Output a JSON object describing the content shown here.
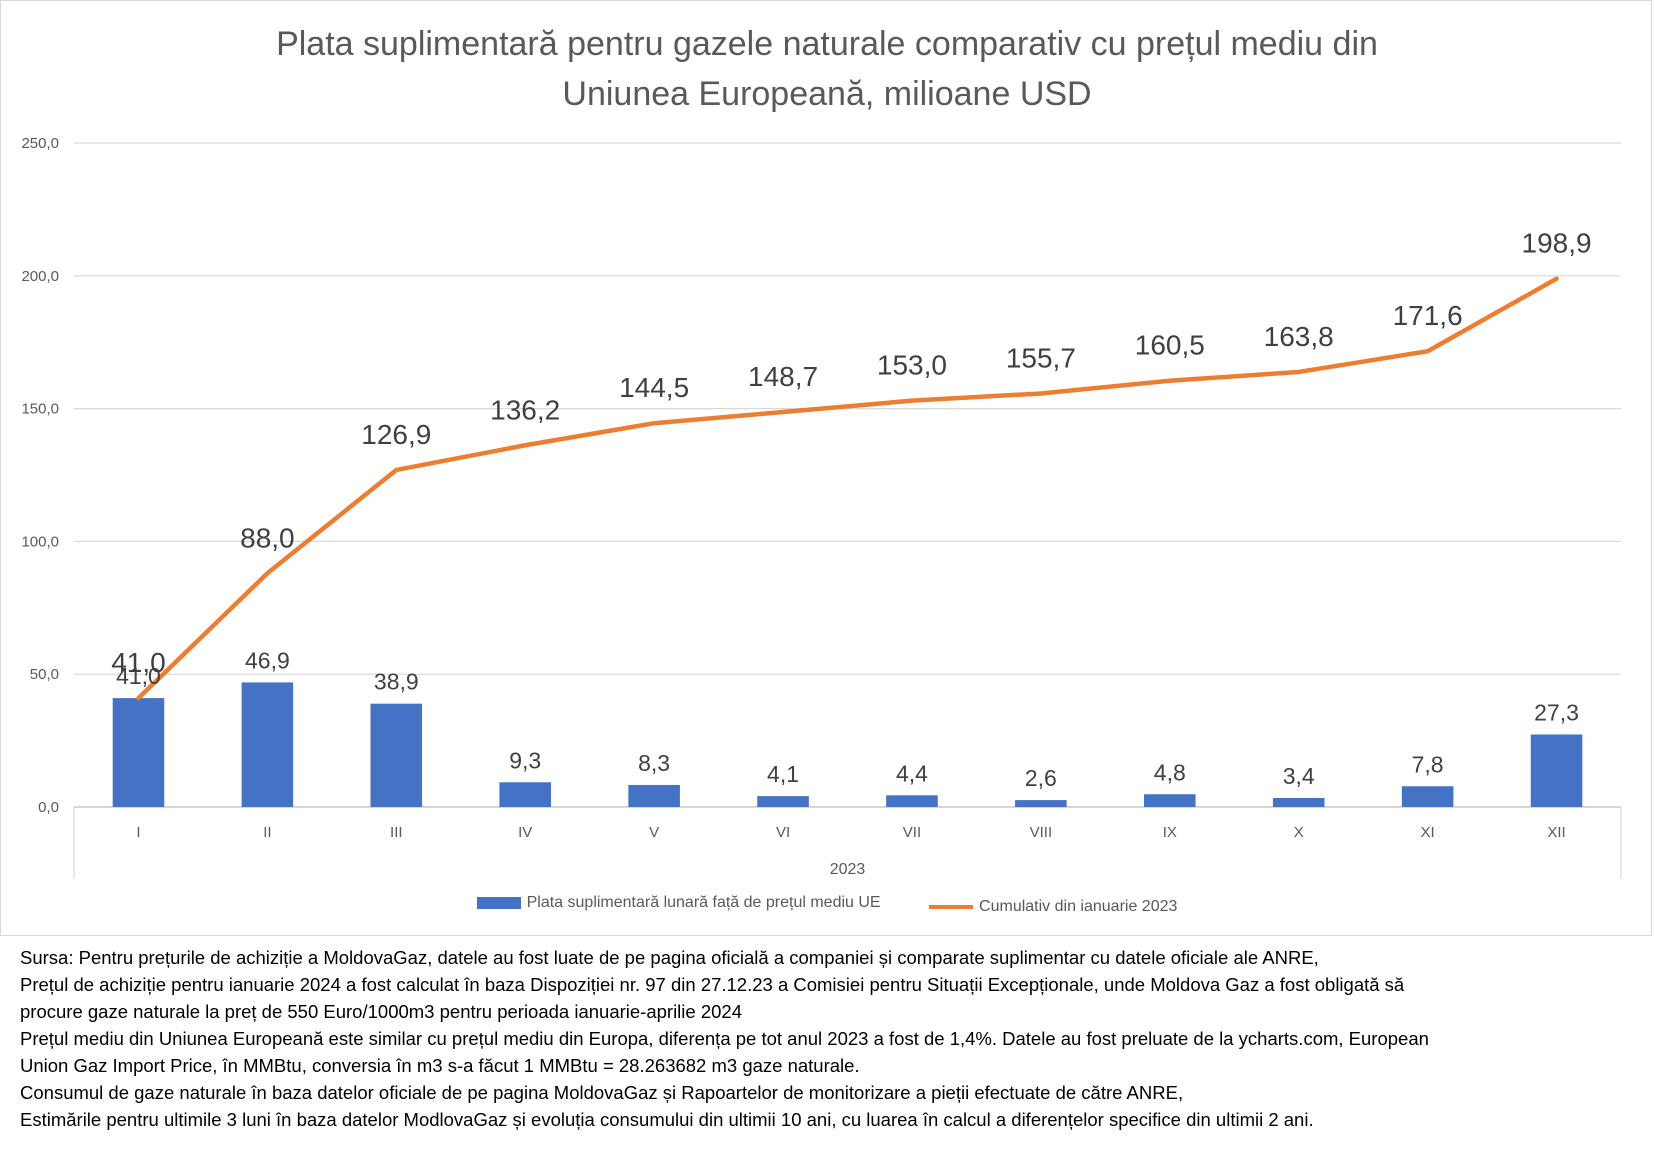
{
  "chart_data": {
    "type": "bar",
    "title": [
      "Plata suplimentară pentru gazele naturale comparativ cu prețul mediu din",
      "Uniunea Europeană, milioane USD"
    ],
    "categories": [
      "I",
      "II",
      "III",
      "IV",
      "V",
      "VI",
      "VII",
      "VIII",
      "IX",
      "X",
      "XI",
      "XII"
    ],
    "category_group_label": "2023",
    "ylim": [
      0,
      250
    ],
    "y_ticks": [
      "0,0",
      "50,0",
      "100,0",
      "150,0",
      "200,0",
      "250,0"
    ],
    "grid": true,
    "legend_position": "bottom",
    "series": [
      {
        "name": "Plata suplimentară lunară față de prețul mediu UE",
        "type": "bar",
        "color": "#4472c4",
        "values": [
          41.0,
          46.9,
          38.9,
          9.3,
          8.3,
          4.1,
          4.4,
          2.6,
          4.8,
          3.4,
          7.8,
          27.3
        ],
        "labels": [
          "41,0",
          "46,9",
          "38,9",
          "9,3",
          "8,3",
          "4,1",
          "4,4",
          "2,6",
          "4,8",
          "3,4",
          "7,8",
          "27,3"
        ]
      },
      {
        "name": "Cumulativ din ianuarie 2023",
        "type": "line",
        "color": "#ed7d31",
        "values": [
          41.0,
          88.0,
          126.9,
          136.2,
          144.5,
          148.7,
          153.0,
          155.7,
          160.5,
          163.8,
          171.6,
          198.9
        ],
        "labels": [
          "41,0",
          "88,0",
          "126,9",
          "136,2",
          "144,5",
          "148,7",
          "153,0",
          "155,7",
          "160,5",
          "163,8",
          "171,6",
          "198,9"
        ]
      }
    ]
  },
  "notes": [
    "Sursa: Pentru prețurile de achiziție a MoldovaGaz, datele au fost luate de pe pagina oficială a companiei și comparate suplimentar cu datele oficiale ale ANRE,",
    "Prețul de achiziție pentru ianuarie 2024 a fost calculat în baza Dispoziției nr. 97 din 27.12.23 a Comisiei pentru Situații Excepționale, unde Moldova Gaz a fost obligată să",
    "procure gaze naturale la preț de 550 Euro/1000m3 pentru perioada ianuarie-aprilie 2024",
    "Prețul mediu din Uniunea Europeană este similar cu prețul mediu din Europa, diferența pe tot anul 2023 a fost de 1,4%. Datele au fost preluate de la ycharts.com, European",
    "Union Gaz Import Price, în MMBtu, conversia în m3 s-a făcut 1 MMBtu = 28.263682 m3 gaze naturale.",
    "Consumul de gaze naturale în baza datelor oficiale de pe pagina MoldovaGaz și Rapoartelor de monitorizare a pieții efectuate de către ANRE,",
    "Estimările pentru ultimile 3 luni în baza datelor ModlovaGaz și evoluția consumului din ultimii 10 ani, cu luarea în calcul a diferențelor specifice din ultimii 2 ani."
  ]
}
